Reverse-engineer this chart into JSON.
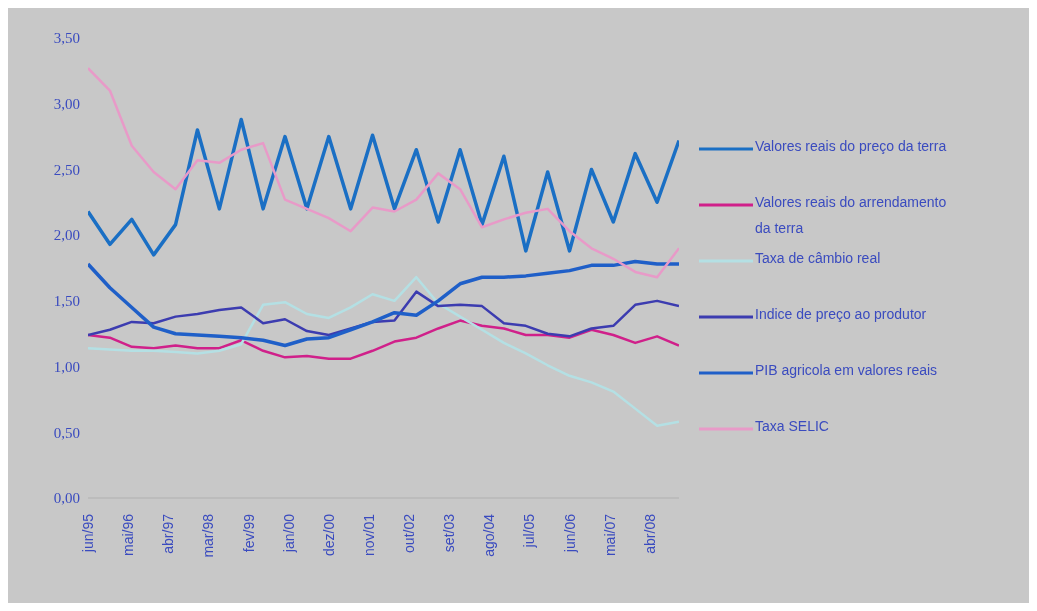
{
  "chart_data": {
    "type": "line",
    "x": [
      "1995-06",
      "1995-12",
      "1996-06",
      "1996-12",
      "1997-06",
      "1997-12",
      "1998-06",
      "1998-12",
      "1999-06",
      "1999-12",
      "2000-06",
      "2000-12",
      "2001-06",
      "2001-12",
      "2002-06",
      "2002-12",
      "2003-06",
      "2003-12",
      "2004-06",
      "2004-12",
      "2005-06",
      "2005-12",
      "2006-06",
      "2006-12",
      "2007-06",
      "2007-12",
      "2008-06",
      "2008-12"
    ],
    "series": [
      {
        "name": "Valores reais do preço da terra",
        "color": "#1a6fc4",
        "values": [
          2.18,
          1.93,
          2.12,
          1.85,
          2.08,
          2.8,
          2.2,
          2.88,
          2.2,
          2.75,
          2.2,
          2.75,
          2.2,
          2.76,
          2.2,
          2.65,
          2.1,
          2.65,
          2.08,
          2.6,
          1.88,
          2.48,
          1.88,
          2.5,
          2.1,
          2.62,
          2.25,
          2.72
        ]
      },
      {
        "name": "Valores reais do arrendamento da terra",
        "color": "#d0208a",
        "values": [
          1.24,
          1.22,
          1.15,
          1.14,
          1.16,
          1.14,
          1.14,
          1.2,
          1.12,
          1.07,
          1.08,
          1.06,
          1.06,
          1.12,
          1.19,
          1.22,
          1.29,
          1.35,
          1.31,
          1.29,
          1.24,
          1.24,
          1.22,
          1.28,
          1.24,
          1.18,
          1.23,
          1.16
        ]
      },
      {
        "name": "Taxa de câmbio real",
        "color": "#b4e0e4",
        "values": [
          1.14,
          1.13,
          1.12,
          1.12,
          1.11,
          1.1,
          1.12,
          1.17,
          1.47,
          1.49,
          1.4,
          1.37,
          1.45,
          1.55,
          1.5,
          1.68,
          1.48,
          1.38,
          1.28,
          1.18,
          1.1,
          1.01,
          0.93,
          0.88,
          0.81,
          0.68,
          0.55,
          0.58
        ]
      },
      {
        "name": "Indice de preço ao produtor",
        "color": "#3c3cb0",
        "values": [
          1.24,
          1.28,
          1.34,
          1.33,
          1.38,
          1.4,
          1.43,
          1.45,
          1.33,
          1.36,
          1.27,
          1.24,
          1.29,
          1.34,
          1.35,
          1.57,
          1.46,
          1.47,
          1.46,
          1.33,
          1.31,
          1.25,
          1.23,
          1.29,
          1.31,
          1.47,
          1.5,
          1.46
        ]
      },
      {
        "name": "PIB agricola em valores reais",
        "color": "#1f5fc8",
        "values": [
          1.78,
          1.6,
          1.45,
          1.3,
          1.25,
          1.24,
          1.23,
          1.22,
          1.2,
          1.16,
          1.21,
          1.22,
          1.28,
          1.34,
          1.41,
          1.39,
          1.5,
          1.63,
          1.68,
          1.68,
          1.69,
          1.71,
          1.73,
          1.77,
          1.77,
          1.8,
          1.78,
          1.78
        ]
      },
      {
        "name": "Taxa SELIC",
        "color": "#e89ac8",
        "values": [
          3.27,
          3.1,
          2.68,
          2.48,
          2.35,
          2.57,
          2.55,
          2.65,
          2.7,
          2.27,
          2.2,
          2.13,
          2.03,
          2.21,
          2.18,
          2.27,
          2.47,
          2.35,
          2.06,
          2.12,
          2.17,
          2.2,
          2.03,
          1.9,
          1.82,
          1.72,
          1.68,
          1.9
        ]
      }
    ],
    "xlim": [
      "1995-06",
      "2008-12"
    ],
    "xticks": [
      {
        "value": "1995-06",
        "label": "jun/95"
      },
      {
        "value": "1996-05",
        "label": "mai/96"
      },
      {
        "value": "1997-04",
        "label": "abr/97"
      },
      {
        "value": "1998-03",
        "label": "mar/98"
      },
      {
        "value": "1999-02",
        "label": "fev/99"
      },
      {
        "value": "2000-01",
        "label": "jan/00"
      },
      {
        "value": "2000-12",
        "label": "dez/00"
      },
      {
        "value": "2001-11",
        "label": "nov/01"
      },
      {
        "value": "2002-10",
        "label": "out/02"
      },
      {
        "value": "2003-09",
        "label": "set/03"
      },
      {
        "value": "2004-08",
        "label": "ago/04"
      },
      {
        "value": "2005-07",
        "label": "jul/05"
      },
      {
        "value": "2006-06",
        "label": "jun/06"
      },
      {
        "value": "2007-05",
        "label": "mai/07"
      },
      {
        "value": "2008-04",
        "label": "abr/08"
      }
    ],
    "ylim": [
      0,
      3.5
    ],
    "yticks": [
      {
        "value": 0,
        "label": "0,00"
      },
      {
        "value": 0.5,
        "label": "0,50"
      },
      {
        "value": 1,
        "label": "1,00"
      },
      {
        "value": 1.5,
        "label": "1,50"
      },
      {
        "value": 2,
        "label": "2,00"
      },
      {
        "value": 2.5,
        "label": "2,50"
      },
      {
        "value": 3,
        "label": "3,00"
      },
      {
        "value": 3.5,
        "label": "3,50"
      }
    ],
    "grid": false,
    "legend": "right"
  }
}
